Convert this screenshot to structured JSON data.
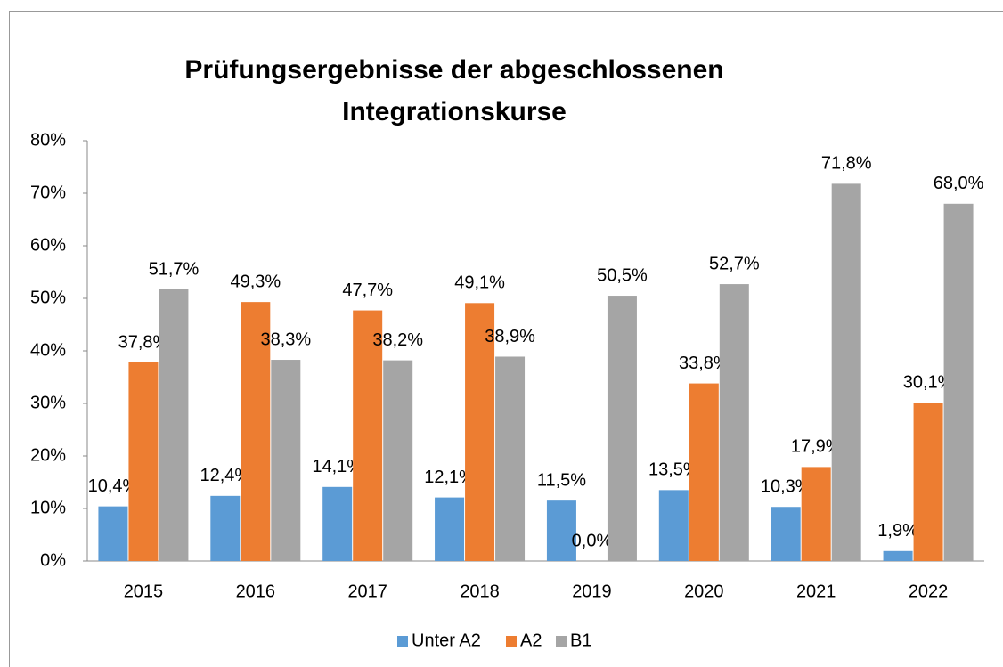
{
  "chart_data": {
    "type": "bar",
    "title": [
      "Prüfungsergebnisse der abgeschlossenen",
      "Integrationskurse"
    ],
    "categories": [
      "2015",
      "2016",
      "2017",
      "2018",
      "2019",
      "2020",
      "2021",
      "2022"
    ],
    "series": [
      {
        "name": "Unter A2",
        "color": "#5b9bd5",
        "values": [
          10.4,
          12.4,
          14.1,
          12.1,
          11.5,
          13.5,
          10.3,
          1.9
        ],
        "value_labels": [
          "10,4%",
          "12,4%",
          "14,1%",
          "12,1%",
          "11,5%",
          "13,5%",
          "10,3%",
          "1,9%"
        ]
      },
      {
        "name": "A2",
        "color": "#ed7d31",
        "values": [
          37.8,
          49.3,
          47.7,
          49.1,
          0.0,
          33.8,
          17.9,
          30.1
        ],
        "value_labels": [
          "37,8%",
          "49,3%",
          "47,7%",
          "49,1%",
          "0,0%",
          "33,8%",
          "17,9%",
          "30,1%"
        ]
      },
      {
        "name": "B1",
        "color": "#a5a5a5",
        "values": [
          51.7,
          38.3,
          38.2,
          38.9,
          50.5,
          52.7,
          71.8,
          68.0
        ],
        "value_labels": [
          "51,7%",
          "38,3%",
          "38,2%",
          "38,9%",
          "50,5%",
          "52,7%",
          "71,8%",
          "68,0%"
        ]
      }
    ],
    "ylim": [
      0,
      80
    ],
    "yticks": [
      {
        "value": 0,
        "label": "0%"
      },
      {
        "value": 10,
        "label": "10%"
      },
      {
        "value": 20,
        "label": "20%"
      },
      {
        "value": 30,
        "label": "30%"
      },
      {
        "value": 40,
        "label": "40%"
      },
      {
        "value": 50,
        "label": "50%"
      },
      {
        "value": 60,
        "label": "60%"
      },
      {
        "value": 70,
        "label": "70%"
      },
      {
        "value": 80,
        "label": "80%"
      }
    ],
    "grid": false,
    "legend": "bottom"
  }
}
